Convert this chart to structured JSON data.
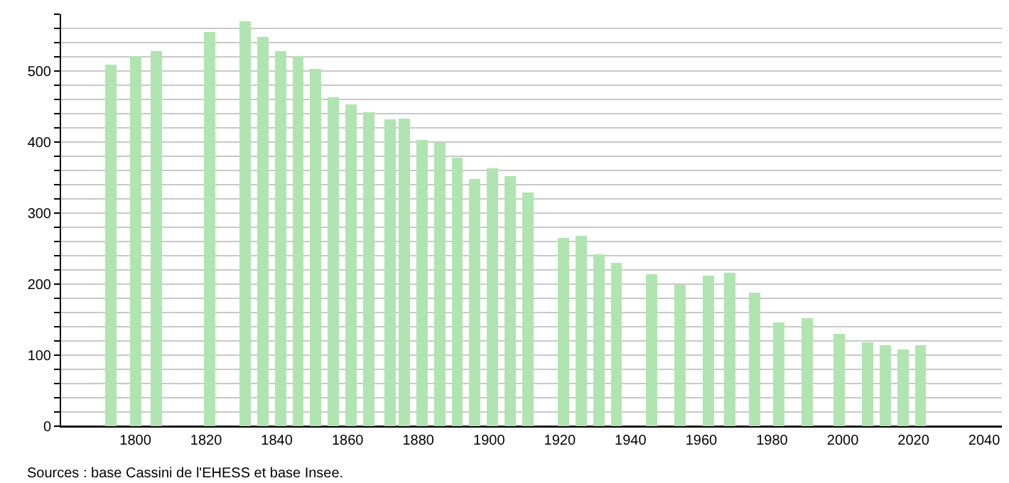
{
  "chart_data": {
    "type": "bar",
    "color": "#b0e4b0",
    "x": [
      1793,
      1800,
      1806,
      1821,
      1831,
      1836,
      1841,
      1846,
      1851,
      1856,
      1861,
      1866,
      1872,
      1876,
      1881,
      1886,
      1891,
      1896,
      1901,
      1906,
      1911,
      1921,
      1926,
      1931,
      1936,
      1946,
      1954,
      1962,
      1968,
      1975,
      1982,
      1990,
      1999,
      2007,
      2012,
      2017,
      2022
    ],
    "values": [
      509,
      521,
      528,
      555,
      570,
      548,
      528,
      521,
      503,
      463,
      453,
      442,
      432,
      433,
      403,
      399,
      378,
      348,
      363,
      352,
      329,
      265,
      268,
      242,
      230,
      214,
      199,
      212,
      216,
      188,
      146,
      152,
      130,
      118,
      114,
      108,
      114
    ],
    "xlim": [
      1779,
      2045
    ],
    "xticks": [
      1800,
      1820,
      1840,
      1860,
      1880,
      1900,
      1920,
      1940,
      1960,
      1980,
      2000,
      2020,
      2040
    ],
    "ylim": [
      0,
      580
    ],
    "yticks": [
      0,
      {
        "value": 20,
        "label": null
      },
      {
        "value": 40,
        "label": null
      },
      {
        "value": 60,
        "label": null
      },
      {
        "value": 80,
        "label": null
      },
      100,
      {
        "value": 120,
        "label": null
      },
      {
        "value": 140,
        "label": null
      },
      {
        "value": 160,
        "label": null
      },
      {
        "value": 180,
        "label": null
      },
      200,
      {
        "value": 220,
        "label": null
      },
      {
        "value": 240,
        "label": null
      },
      {
        "value": 260,
        "label": null
      },
      {
        "value": 280,
        "label": null
      },
      300,
      {
        "value": 320,
        "label": null
      },
      {
        "value": 340,
        "label": null
      },
      {
        "value": 360,
        "label": null
      },
      {
        "value": 380,
        "label": null
      },
      400,
      {
        "value": 420,
        "label": null
      },
      {
        "value": 440,
        "label": null
      },
      {
        "value": 460,
        "label": null
      },
      {
        "value": 480,
        "label": null
      },
      500,
      {
        "value": 520,
        "label": null
      },
      {
        "value": 540,
        "label": null
      },
      {
        "value": 560,
        "label": null
      },
      {
        "value": 580,
        "label": null
      }
    ],
    "grid": "y",
    "legend": false,
    "annotations": [
      "Sources : base Cassini de l'EHESS et base Insee."
    ]
  }
}
